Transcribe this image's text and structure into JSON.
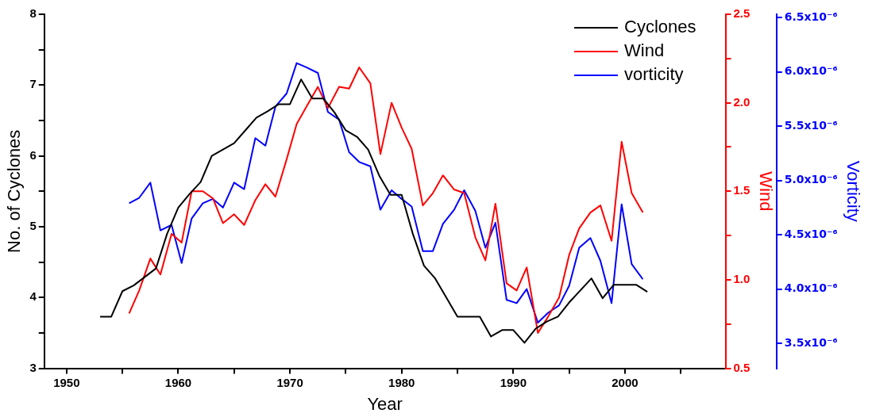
{
  "chart_data": {
    "type": "line",
    "xlabel": "Year",
    "ylabel": "No. of Cyclones",
    "y2label": "Wind",
    "y3label": "Vorticity",
    "legend": "top right",
    "grid": false,
    "xlim": [
      1948,
      2009
    ],
    "xticks": [
      1950,
      {
        "value": 1955,
        "label": null
      },
      1960,
      {
        "value": 1965,
        "label": null
      },
      1970,
      {
        "value": 1975,
        "label": null
      },
      1980,
      {
        "value": 1985,
        "label": null
      },
      1990,
      {
        "value": 1995,
        "label": null
      },
      2000,
      {
        "value": 2005,
        "label": null
      }
    ],
    "ylim": [
      3,
      8
    ],
    "yticks": [
      3,
      {
        "value": 3.5,
        "label": null
      },
      4,
      {
        "value": 4.5,
        "label": null
      },
      5,
      {
        "value": 5.5,
        "label": null
      },
      6,
      {
        "value": 6.5,
        "label": null
      },
      7,
      {
        "value": 7.5,
        "label": null
      },
      8
    ],
    "y2lim": [
      0.5,
      2.5
    ],
    "y2ticks": [
      0.5,
      {
        "value": 0.75,
        "label": null
      },
      {
        "value": 1,
        "label": "1.0"
      },
      {
        "value": 1.25,
        "label": null
      },
      1.5,
      {
        "value": 1.75,
        "label": null
      },
      {
        "value": 2,
        "label": "2.0"
      },
      {
        "value": 2.25,
        "label": null
      },
      2.5
    ],
    "y3lim": [
      3.27e-06,
      6.53e-06
    ],
    "y3ticks": [
      {
        "value": 3.5e-06,
        "label": "3.5x10⁻⁶"
      },
      {
        "value": 4e-06,
        "label": "4.0x10⁻⁶"
      },
      {
        "value": 4.5e-06,
        "label": "4.5x10⁻⁶"
      },
      {
        "value": 5e-06,
        "label": "5.0x10⁻⁶"
      },
      {
        "value": 5.5e-06,
        "label": "5.5x10⁻⁶"
      },
      {
        "value": 6e-06,
        "label": "6.0x10⁻⁶"
      },
      {
        "value": 6.5e-06,
        "label": "6.5x10⁻⁶"
      }
    ],
    "series": [
      {
        "name": "Cyclones",
        "color": "#000000",
        "x": [
          1953,
          1954,
          1955,
          1956,
          1957,
          1958,
          1959,
          1960,
          1961,
          1962,
          1963,
          1964,
          1965,
          1966,
          1967,
          1968,
          1969,
          1970,
          1971,
          1972,
          1973,
          1974,
          1975,
          1976,
          1977,
          1978,
          1979,
          1980,
          1981,
          1982,
          1983,
          1984,
          1985,
          1986,
          1987,
          1988,
          1989,
          1990,
          1991,
          1992,
          1993,
          1994,
          1995,
          1996,
          1997,
          1998,
          1999,
          2000,
          2001,
          2002
        ],
        "values": [
          3.73,
          3.73,
          4.09,
          4.17,
          4.29,
          4.41,
          4.9,
          5.27,
          5.46,
          5.63,
          6.0,
          6.09,
          6.18,
          6.36,
          6.54,
          6.63,
          6.73,
          6.73,
          7.08,
          6.81,
          6.81,
          6.61,
          6.36,
          6.27,
          6.09,
          5.72,
          5.45,
          5.45,
          4.9,
          4.45,
          4.27,
          4.0,
          3.73,
          3.73,
          3.73,
          3.45,
          3.54,
          3.54,
          3.36,
          3.56,
          3.66,
          3.73,
          3.93,
          4.1,
          4.27,
          3.99,
          4.18,
          4.18,
          4.18,
          4.08
        ]
      },
      {
        "name": "Wind",
        "color": "#ff0000",
        "axis": "y2",
        "x": [
          1955.6,
          1956.5,
          1957.5,
          1958.4,
          1959.4,
          1960.3,
          1961.2,
          1962.2,
          1963.1,
          1964.0,
          1965.0,
          1965.9,
          1966.9,
          1967.8,
          1968.7,
          1969.7,
          1970.6,
          1971.5,
          1972.5,
          1973.4,
          1974.4,
          1975.3,
          1976.2,
          1977.2,
          1978.1,
          1979.1,
          1980.0,
          1980.9,
          1981.9,
          1982.8,
          1983.7,
          1984.7,
          1985.6,
          1986.6,
          1987.5,
          1988.4,
          1989.4,
          1990.3,
          1991.2,
          1992.2,
          1993.1,
          1994.1,
          1995.0,
          1995.9,
          1996.9,
          1997.8,
          1998.8,
          1999.7,
          2000.6,
          2001.6
        ],
        "values": [
          0.81,
          0.94,
          1.12,
          1.03,
          1.26,
          1.21,
          1.5,
          1.5,
          1.46,
          1.32,
          1.37,
          1.31,
          1.45,
          1.54,
          1.47,
          1.68,
          1.88,
          1.98,
          2.09,
          1.97,
          2.09,
          2.08,
          2.2,
          2.11,
          1.71,
          2.0,
          1.86,
          1.74,
          1.42,
          1.49,
          1.59,
          1.51,
          1.49,
          1.24,
          1.11,
          1.43,
          0.98,
          0.94,
          1.07,
          0.7,
          0.79,
          0.9,
          1.14,
          1.29,
          1.38,
          1.42,
          1.22,
          1.78,
          1.49,
          1.38
        ]
      },
      {
        "name": "vorticity",
        "color": "#0000ff",
        "axis": "y3",
        "x": [
          1955.6,
          1956.5,
          1957.5,
          1958.4,
          1959.4,
          1960.3,
          1961.2,
          1962.2,
          1963.1,
          1964.0,
          1965.0,
          1965.9,
          1966.9,
          1967.8,
          1968.7,
          1969.7,
          1970.6,
          1971.5,
          1972.5,
          1973.4,
          1974.4,
          1975.3,
          1976.2,
          1977.2,
          1978.1,
          1979.1,
          1980.0,
          1980.9,
          1981.9,
          1982.8,
          1983.7,
          1984.7,
          1985.6,
          1986.6,
          1987.5,
          1988.4,
          1989.4,
          1990.3,
          1991.2,
          1992.2,
          1993.1,
          1994.1,
          1995.0,
          1995.9,
          1996.9,
          1997.8,
          1998.8,
          1999.7,
          2000.6,
          2001.6
        ],
        "values": [
          4.79e-06,
          4.84e-06,
          4.98e-06,
          4.54e-06,
          4.59e-06,
          4.24e-06,
          4.65e-06,
          4.79e-06,
          4.83e-06,
          4.75e-06,
          4.98e-06,
          4.92e-06,
          5.39e-06,
          5.32e-06,
          5.68e-06,
          5.8e-06,
          6.08e-06,
          6.04e-06,
          5.99e-06,
          5.63e-06,
          5.56e-06,
          5.26e-06,
          5.17e-06,
          5.13e-06,
          4.73e-06,
          4.91e-06,
          4.83e-06,
          4.76e-06,
          4.35e-06,
          4.35e-06,
          4.6e-06,
          4.73e-06,
          4.91e-06,
          4.72e-06,
          4.38e-06,
          4.61e-06,
          3.9e-06,
          3.87e-06,
          4e-06,
          3.69e-06,
          3.78e-06,
          3.85e-06,
          4.03e-06,
          4.38e-06,
          4.47e-06,
          4.26e-06,
          3.87e-06,
          4.78e-06,
          4.23e-06,
          4.09e-06
        ]
      }
    ]
  }
}
